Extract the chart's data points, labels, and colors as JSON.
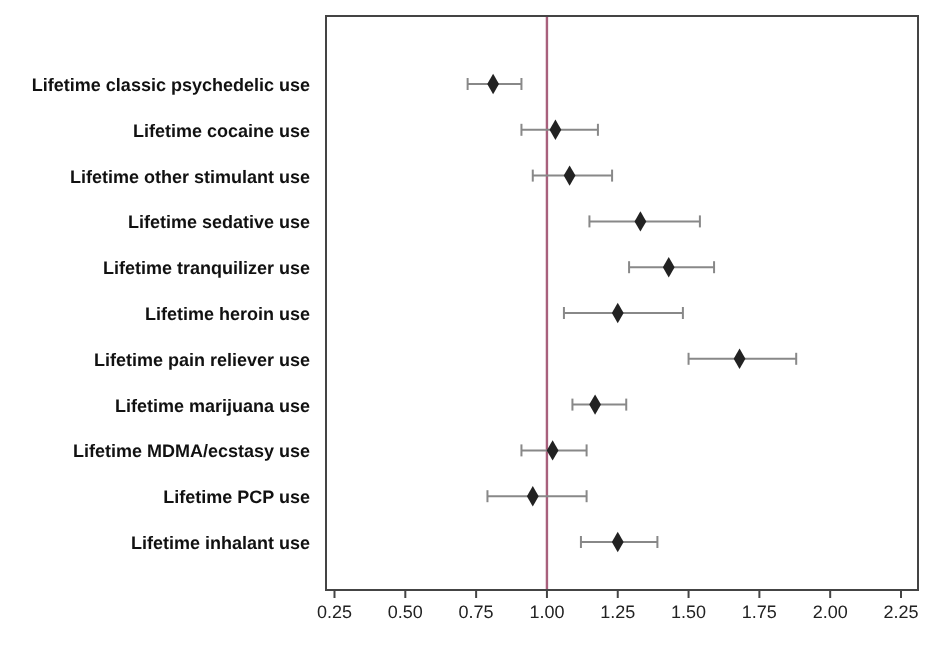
{
  "chart_data": {
    "type": "scatter",
    "orientation": "horizontal",
    "marker": "diamond",
    "color": "#222222",
    "categories": [
      "Lifetime classic psychedelic use",
      "Lifetime cocaine use",
      "Lifetime other stimulant use",
      "Lifetime sedative use",
      "Lifetime tranquilizer use",
      "Lifetime heroin use",
      "Lifetime pain reliever use",
      "Lifetime marijuana use",
      "Lifetime MDMA/ecstasy use",
      "Lifetime PCP use",
      "Lifetime inhalant use"
    ],
    "values": [
      0.81,
      1.03,
      1.08,
      1.33,
      1.43,
      1.25,
      1.68,
      1.17,
      1.02,
      0.95,
      1.25
    ],
    "errors": [
      [
        0.72,
        0.91
      ],
      [
        0.91,
        1.18
      ],
      [
        0.95,
        1.23
      ],
      [
        1.15,
        1.54
      ],
      [
        1.29,
        1.59
      ],
      [
        1.06,
        1.48
      ],
      [
        1.5,
        1.88
      ],
      [
        1.09,
        1.28
      ],
      [
        0.91,
        1.14
      ],
      [
        0.79,
        1.14
      ],
      [
        1.12,
        1.39
      ]
    ],
    "xlim": [
      0.22,
      2.31
    ],
    "xticks": [
      {
        "value": 0.25,
        "label": "0.25"
      },
      {
        "value": 0.5,
        "label": "0.50"
      },
      {
        "value": 0.75,
        "label": "0.75"
      },
      {
        "value": 1,
        "label": "1.00"
      },
      {
        "value": 1.25,
        "label": "1.25"
      },
      {
        "value": 1.5,
        "label": "1.50"
      },
      {
        "value": 1.75,
        "label": "1.75"
      },
      {
        "value": 2,
        "label": "2.00"
      },
      {
        "value": 2.25,
        "label": "2.25"
      }
    ],
    "ref_lines": [
      {
        "axis": "x",
        "value": 1,
        "color": "#a8607c"
      }
    ],
    "grid": false
  }
}
